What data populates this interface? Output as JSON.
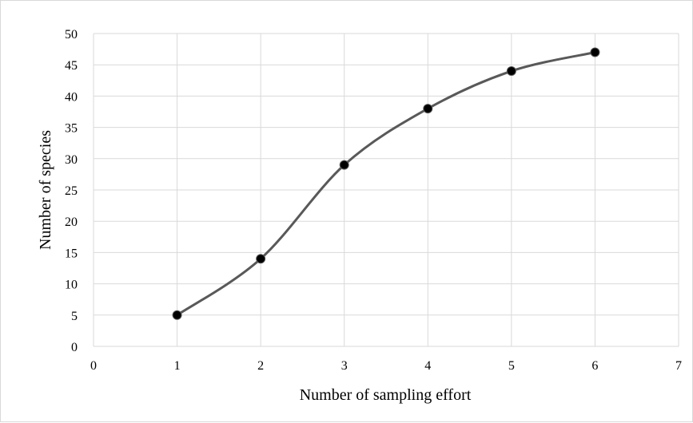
{
  "chart_data": {
    "type": "line",
    "title": "",
    "xlabel": "Number of sampling effort",
    "ylabel": "Number of species",
    "xlim": [
      0,
      7
    ],
    "ylim": [
      0,
      50
    ],
    "x_ticks": [
      "0",
      "1",
      "2",
      "3",
      "4",
      "5",
      "6",
      "7"
    ],
    "y_ticks": [
      "0",
      "5",
      "10",
      "15",
      "20",
      "25",
      "30",
      "35",
      "40",
      "45",
      "50"
    ],
    "grid": true,
    "smoothed": true,
    "marker": "circle",
    "series": [
      {
        "x": [
          1,
          2,
          3,
          4,
          5,
          6
        ],
        "y": [
          5,
          14,
          29,
          38,
          44,
          47
        ],
        "color": "#595959",
        "marker_color": "#000000"
      }
    ]
  }
}
